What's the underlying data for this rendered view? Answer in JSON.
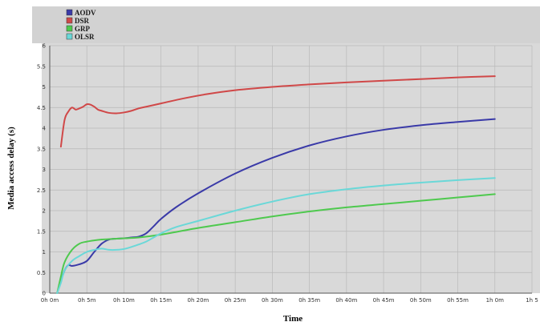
{
  "chart_data": {
    "type": "line",
    "title": "",
    "xlabel": "Time",
    "ylabel": "Media access delay (s)",
    "x_unit": "minutes",
    "xlim": [
      0,
      65
    ],
    "ylim": [
      0,
      6
    ],
    "x_ticks": [
      {
        "value": 0,
        "label": "0h 0m"
      },
      {
        "value": 5,
        "label": "0h 5m"
      },
      {
        "value": 10,
        "label": "0h 10m"
      },
      {
        "value": 15,
        "label": "0h 15m"
      },
      {
        "value": 20,
        "label": "0h 20m"
      },
      {
        "value": 25,
        "label": "0h 25m"
      },
      {
        "value": 30,
        "label": "0h 30m"
      },
      {
        "value": 35,
        "label": "0h 35m"
      },
      {
        "value": 40,
        "label": "0h 40m"
      },
      {
        "value": 45,
        "label": "0h 45m"
      },
      {
        "value": 50,
        "label": "0h 50m"
      },
      {
        "value": 55,
        "label": "0h 55m"
      },
      {
        "value": 60,
        "label": "1h 0m"
      },
      {
        "value": 65,
        "label": "1h 5"
      }
    ],
    "y_ticks": [
      {
        "value": 0,
        "label": "0"
      },
      {
        "value": 0.5,
        "label": "0.5"
      },
      {
        "value": 1,
        "label": "1"
      },
      {
        "value": 1.5,
        "label": "1.5"
      },
      {
        "value": 2,
        "label": "2"
      },
      {
        "value": 2.5,
        "label": "2.5"
      },
      {
        "value": 3,
        "label": "3"
      },
      {
        "value": 3.5,
        "label": "3.5"
      },
      {
        "value": 4,
        "label": "4"
      },
      {
        "value": 4.5,
        "label": "4.5"
      },
      {
        "value": 5,
        "label": "5"
      },
      {
        "value": 5.5,
        "label": "5.5"
      },
      {
        "value": 6,
        "label": "6"
      }
    ],
    "grid": true,
    "legend_position": "top-left",
    "series": [
      {
        "name": "AODV",
        "color": "#3a3aa8",
        "x": [
          1,
          1.5,
          2,
          2.5,
          3,
          4,
          5,
          6,
          7,
          8,
          9,
          10,
          11,
          12,
          13,
          14,
          15,
          17,
          20,
          25,
          30,
          35,
          40,
          45,
          50,
          55,
          60
        ],
        "y": [
          0,
          0.3,
          0.55,
          0.68,
          0.66,
          0.7,
          0.78,
          1.0,
          1.2,
          1.3,
          1.32,
          1.33,
          1.35,
          1.37,
          1.45,
          1.62,
          1.8,
          2.08,
          2.42,
          2.9,
          3.28,
          3.58,
          3.8,
          3.96,
          4.07,
          4.15,
          4.22
        ]
      },
      {
        "name": "DSR",
        "color": "#d04848",
        "x": [
          1.5,
          2,
          2.5,
          3,
          3.5,
          4,
          4.5,
          5,
          5.5,
          6,
          6.5,
          7,
          8,
          9,
          10,
          11,
          12,
          13,
          15,
          18,
          21,
          25,
          30,
          35,
          40,
          45,
          50,
          55,
          60
        ],
        "y": [
          3.55,
          4.2,
          4.4,
          4.5,
          4.45,
          4.48,
          4.52,
          4.58,
          4.57,
          4.52,
          4.45,
          4.42,
          4.37,
          4.36,
          4.38,
          4.42,
          4.48,
          4.52,
          4.6,
          4.72,
          4.82,
          4.92,
          5.0,
          5.06,
          5.11,
          5.15,
          5.19,
          5.23,
          5.26
        ]
      },
      {
        "name": "GRP",
        "color": "#4ec94e",
        "x": [
          1,
          1.5,
          2,
          3,
          4,
          5,
          6,
          7,
          8,
          9,
          10,
          12,
          15,
          20,
          25,
          30,
          35,
          40,
          45,
          50,
          55,
          60
        ],
        "y": [
          0,
          0.4,
          0.75,
          1.05,
          1.2,
          1.25,
          1.28,
          1.3,
          1.31,
          1.32,
          1.33,
          1.35,
          1.42,
          1.58,
          1.72,
          1.86,
          1.98,
          2.08,
          2.16,
          2.24,
          2.32,
          2.4
        ]
      },
      {
        "name": "OLSR",
        "color": "#6ad8d8",
        "x": [
          1,
          1.5,
          2,
          3,
          4,
          5,
          6,
          7,
          8,
          9,
          10,
          11,
          12,
          13,
          14,
          15,
          17,
          20,
          25,
          30,
          35,
          40,
          45,
          50,
          55,
          60
        ],
        "y": [
          0,
          0.25,
          0.55,
          0.78,
          0.9,
          1.0,
          1.05,
          1.08,
          1.05,
          1.05,
          1.07,
          1.12,
          1.18,
          1.25,
          1.35,
          1.45,
          1.6,
          1.75,
          2.0,
          2.22,
          2.4,
          2.52,
          2.61,
          2.68,
          2.74,
          2.79
        ]
      }
    ]
  }
}
